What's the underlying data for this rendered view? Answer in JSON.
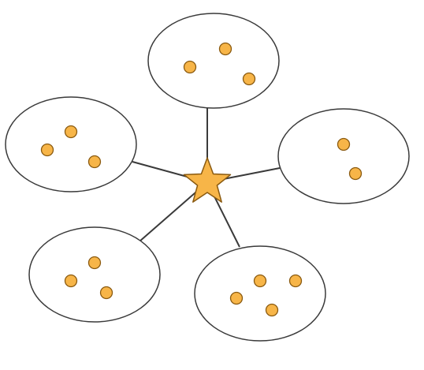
{
  "colors": {
    "background": "#ffffff",
    "outline": "#3a3a3a",
    "node_fill": "#f7b548",
    "node_stroke": "#8a5a10",
    "ellipse_fill": "#ffffff",
    "connector": "#3a3a3a"
  },
  "hub": {
    "shape": "star",
    "icon": "star-icon"
  },
  "clusters": [
    {
      "id": "top",
      "point_count": 3
    },
    {
      "id": "left",
      "point_count": 3
    },
    {
      "id": "right",
      "point_count": 2
    },
    {
      "id": "bottom-left",
      "point_count": 3
    },
    {
      "id": "bottom-right",
      "point_count": 4
    }
  ]
}
